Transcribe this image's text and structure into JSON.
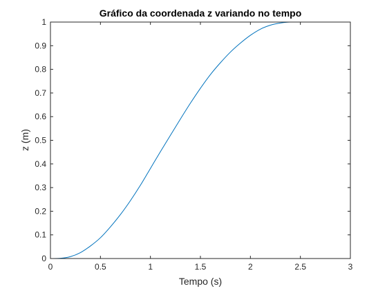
{
  "chart_data": {
    "type": "line",
    "title": "Gráfico da coordenada z variando no tempo",
    "xlabel": "Tempo (s)",
    "ylabel": "z (m)",
    "xlim": [
      0,
      3
    ],
    "ylim": [
      0,
      1
    ],
    "xticks": [
      "0",
      "0.5",
      "1",
      "1.5",
      "2",
      "2.5",
      "3"
    ],
    "yticks": [
      "0",
      "0.1",
      "0.2",
      "0.3",
      "0.4",
      "0.5",
      "0.6",
      "0.7",
      "0.8",
      "0.9",
      "1"
    ],
    "grid": false,
    "series": [
      {
        "color": "#0072BD",
        "x": [
          0,
          0.1,
          0.2,
          0.3,
          0.4,
          0.5,
          0.6,
          0.7,
          0.8,
          0.9,
          1.0,
          1.1,
          1.2,
          1.3,
          1.4,
          1.5,
          1.6,
          1.7,
          1.8,
          1.9,
          2.0,
          2.1,
          2.2,
          2.3,
          2.4,
          2.5,
          2.6,
          2.7,
          2.8,
          2.9,
          3.0
        ],
        "y": [
          0,
          0.001,
          0.008,
          0.025,
          0.053,
          0.088,
          0.134,
          0.186,
          0.245,
          0.31,
          0.381,
          0.452,
          0.521,
          0.59,
          0.657,
          0.72,
          0.778,
          0.828,
          0.873,
          0.911,
          0.944,
          0.97,
          0.987,
          0.996,
          1.0,
          1.0,
          1.0,
          1.0,
          1.0,
          1.0,
          1.0
        ]
      }
    ]
  }
}
